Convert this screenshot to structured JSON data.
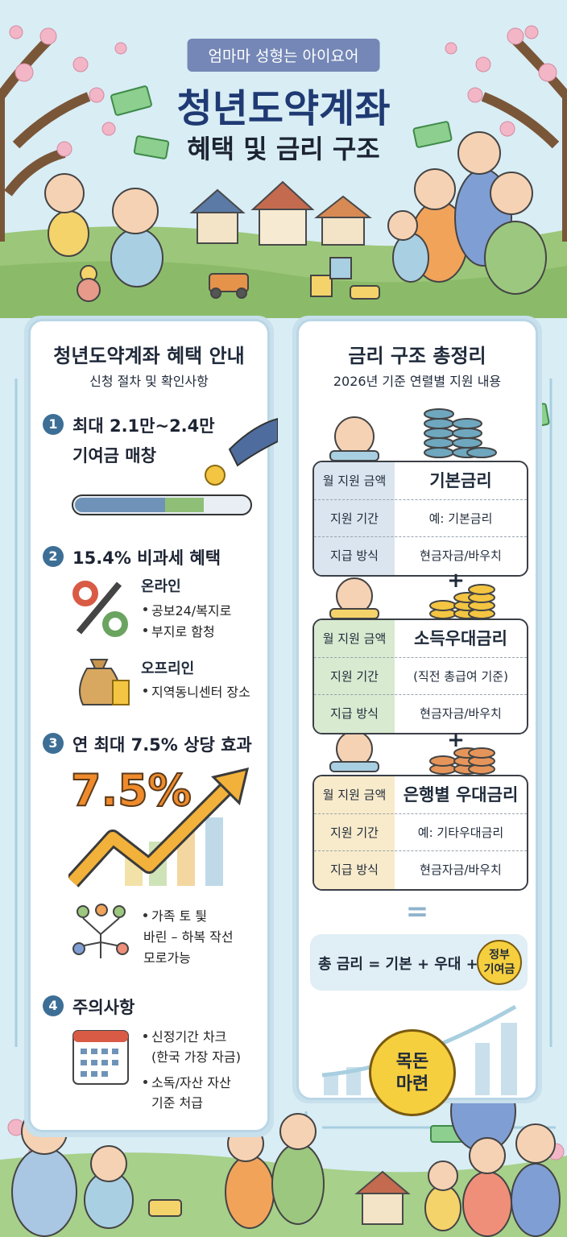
{
  "header": {
    "badge": "엄마마 성형는 아이요어",
    "title": "청년도약계좌",
    "subtitle": "혜택 및 금리 구조"
  },
  "left_panel": {
    "title": "청년도약계좌 혜택 안내",
    "subtitle": "신청 절차 및 확인사항",
    "sections": [
      {
        "number": "1",
        "heading": [
          "최대 2.1만~2.4만",
          "기여금 매창"
        ]
      },
      {
        "number": "2",
        "heading": [
          "15.4% 비과세 혜택"
        ],
        "groups": [
          {
            "label": "온라인",
            "items": [
              "공보24/복지로",
              "부지로 함청"
            ]
          },
          {
            "label": "오프리인",
            "items": [
              "지역동니센터 장소"
            ]
          }
        ]
      },
      {
        "number": "3",
        "heading": [
          "연 최대 7.5% 상당 효과"
        ],
        "graphic_label": "7.5%",
        "items": [
          [
            "가족 토 틫",
            "바린 – 하복 작선",
            "모로가능"
          ]
        ]
      },
      {
        "number": "4",
        "heading": [
          "주의사항"
        ],
        "items": [
          [
            "신정기간 차크",
            "(한국 가장 자금)"
          ],
          [
            "소독/자산 자산",
            "기준 처급"
          ]
        ]
      }
    ]
  },
  "right_panel": {
    "title": "금리 구조 총정리",
    "subtitle": "2026년 기준 연렬별 지원 내용",
    "row_labels": [
      "월 지원 금액",
      "지원 기간",
      "지급 방식"
    ],
    "cards": [
      {
        "name": "기본금리",
        "detail": "예: 기본금리",
        "payment": "현금자금/바우치"
      },
      {
        "name": "소득우대금리",
        "detail": "(직전 총급여 기준)",
        "payment": "현금자금/바우치"
      },
      {
        "name": "은행별 우대금리",
        "detail": "예: 기타우대금리",
        "payment": "현금자금/바우치"
      }
    ],
    "plus": "+",
    "equals": "=",
    "formula": "총 금리 = 기본 + 우대 +",
    "formula_badge": [
      "정부",
      "기여금"
    ],
    "coin": [
      "목돈",
      "마련"
    ]
  }
}
